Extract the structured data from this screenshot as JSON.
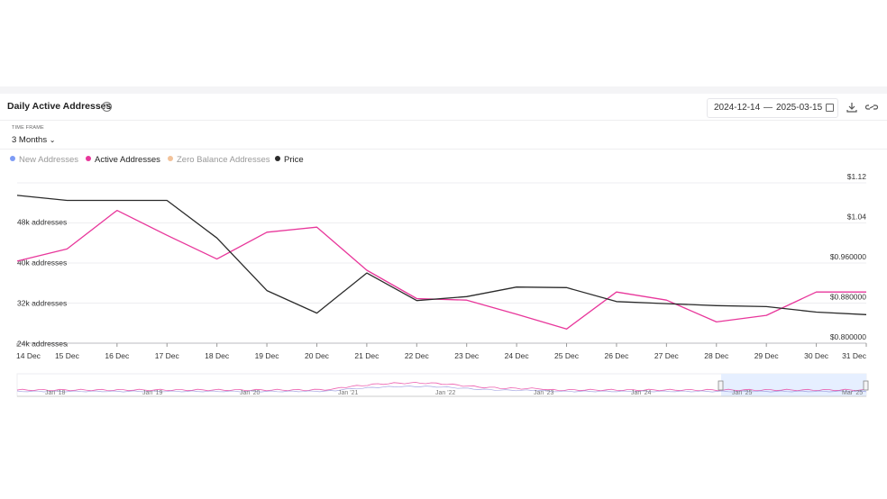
{
  "header": {
    "title": "Daily Active Addresses",
    "date_from": "2024-12-14",
    "date_sep": "—",
    "date_to": "2025-03-15"
  },
  "timeframe": {
    "label": "TIME FRAME",
    "value": "3 Months"
  },
  "legend": [
    {
      "name": "New Addresses",
      "color": "#7d9bf5",
      "active": false
    },
    {
      "name": "Active Addresses",
      "color": "#e8379b",
      "active": true
    },
    {
      "name": "Zero Balance Addresses",
      "color": "#f2c29a",
      "active": false
    },
    {
      "name": "Price",
      "color": "#2b2b2b",
      "active": true
    }
  ],
  "chart_data": {
    "type": "line",
    "categories": [
      "14 Dec",
      "15 Dec",
      "16 Dec",
      "17 Dec",
      "18 Dec",
      "19 Dec",
      "20 Dec",
      "21 Dec",
      "22 Dec",
      "23 Dec",
      "24 Dec",
      "25 Dec",
      "26 Dec",
      "27 Dec",
      "28 Dec",
      "29 Dec",
      "30 Dec",
      "31 Dec"
    ],
    "left_axis": {
      "ticks": [
        "48k addresses",
        "40k addresses",
        "32k addresses",
        "24k addresses"
      ],
      "tick_values": [
        48000,
        40000,
        32000,
        24000
      ],
      "min": 24000,
      "max": 48000
    },
    "right_axis": {
      "ticks": [
        "$1.12",
        "$1.04",
        "$0.960000",
        "$0.880000",
        "$0.800000"
      ],
      "tick_values": [
        1.12,
        1.04,
        0.96,
        0.88,
        0.8
      ],
      "min": 0.8,
      "max": 1.12
    },
    "series": [
      {
        "name": "Active Addresses",
        "axis": "left",
        "color": "#e8379b",
        "values": [
          40200,
          42600,
          50200,
          45300,
          40600,
          45900,
          46900,
          38400,
          32800,
          32500,
          29700,
          26800,
          34100,
          32500,
          28200,
          29500,
          34100,
          34100
        ]
      },
      {
        "name": "Price",
        "axis": "right",
        "color": "#2b2b2b",
        "values": [
          1.095,
          1.085,
          1.085,
          1.085,
          1.01,
          0.905,
          0.86,
          0.94,
          0.885,
          0.893,
          0.912,
          0.911,
          0.883,
          0.879,
          0.875,
          0.873,
          0.862,
          0.857
        ]
      }
    ],
    "navigator": {
      "labels": [
        "Jan '18",
        "Jan '19",
        "Jan '20",
        "Jan '21",
        "Jan '22",
        "Jan '23",
        "Jan '24",
        "Jan '25",
        "Mar '25"
      ]
    }
  }
}
